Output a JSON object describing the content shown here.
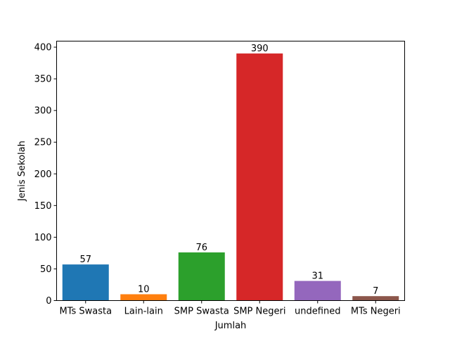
{
  "chart_data": {
    "type": "bar",
    "title": "",
    "xlabel": "Jumlah",
    "ylabel": "Jenis Sekolah",
    "categories": [
      "MTs Swasta",
      "Lain-lain",
      "SMP Swasta",
      "SMP Negeri",
      "undefined",
      "MTs Negeri"
    ],
    "values": [
      57,
      10,
      76,
      390,
      31,
      7
    ],
    "colors": [
      "#1f77b4",
      "#ff7f0e",
      "#2ca02c",
      "#d62728",
      "#9467bd",
      "#8c564b"
    ],
    "ylim": [
      0,
      409.5
    ],
    "yticks": [
      0,
      50,
      100,
      150,
      200,
      250,
      300,
      350,
      400
    ],
    "grid": false,
    "data_labels": true
  }
}
